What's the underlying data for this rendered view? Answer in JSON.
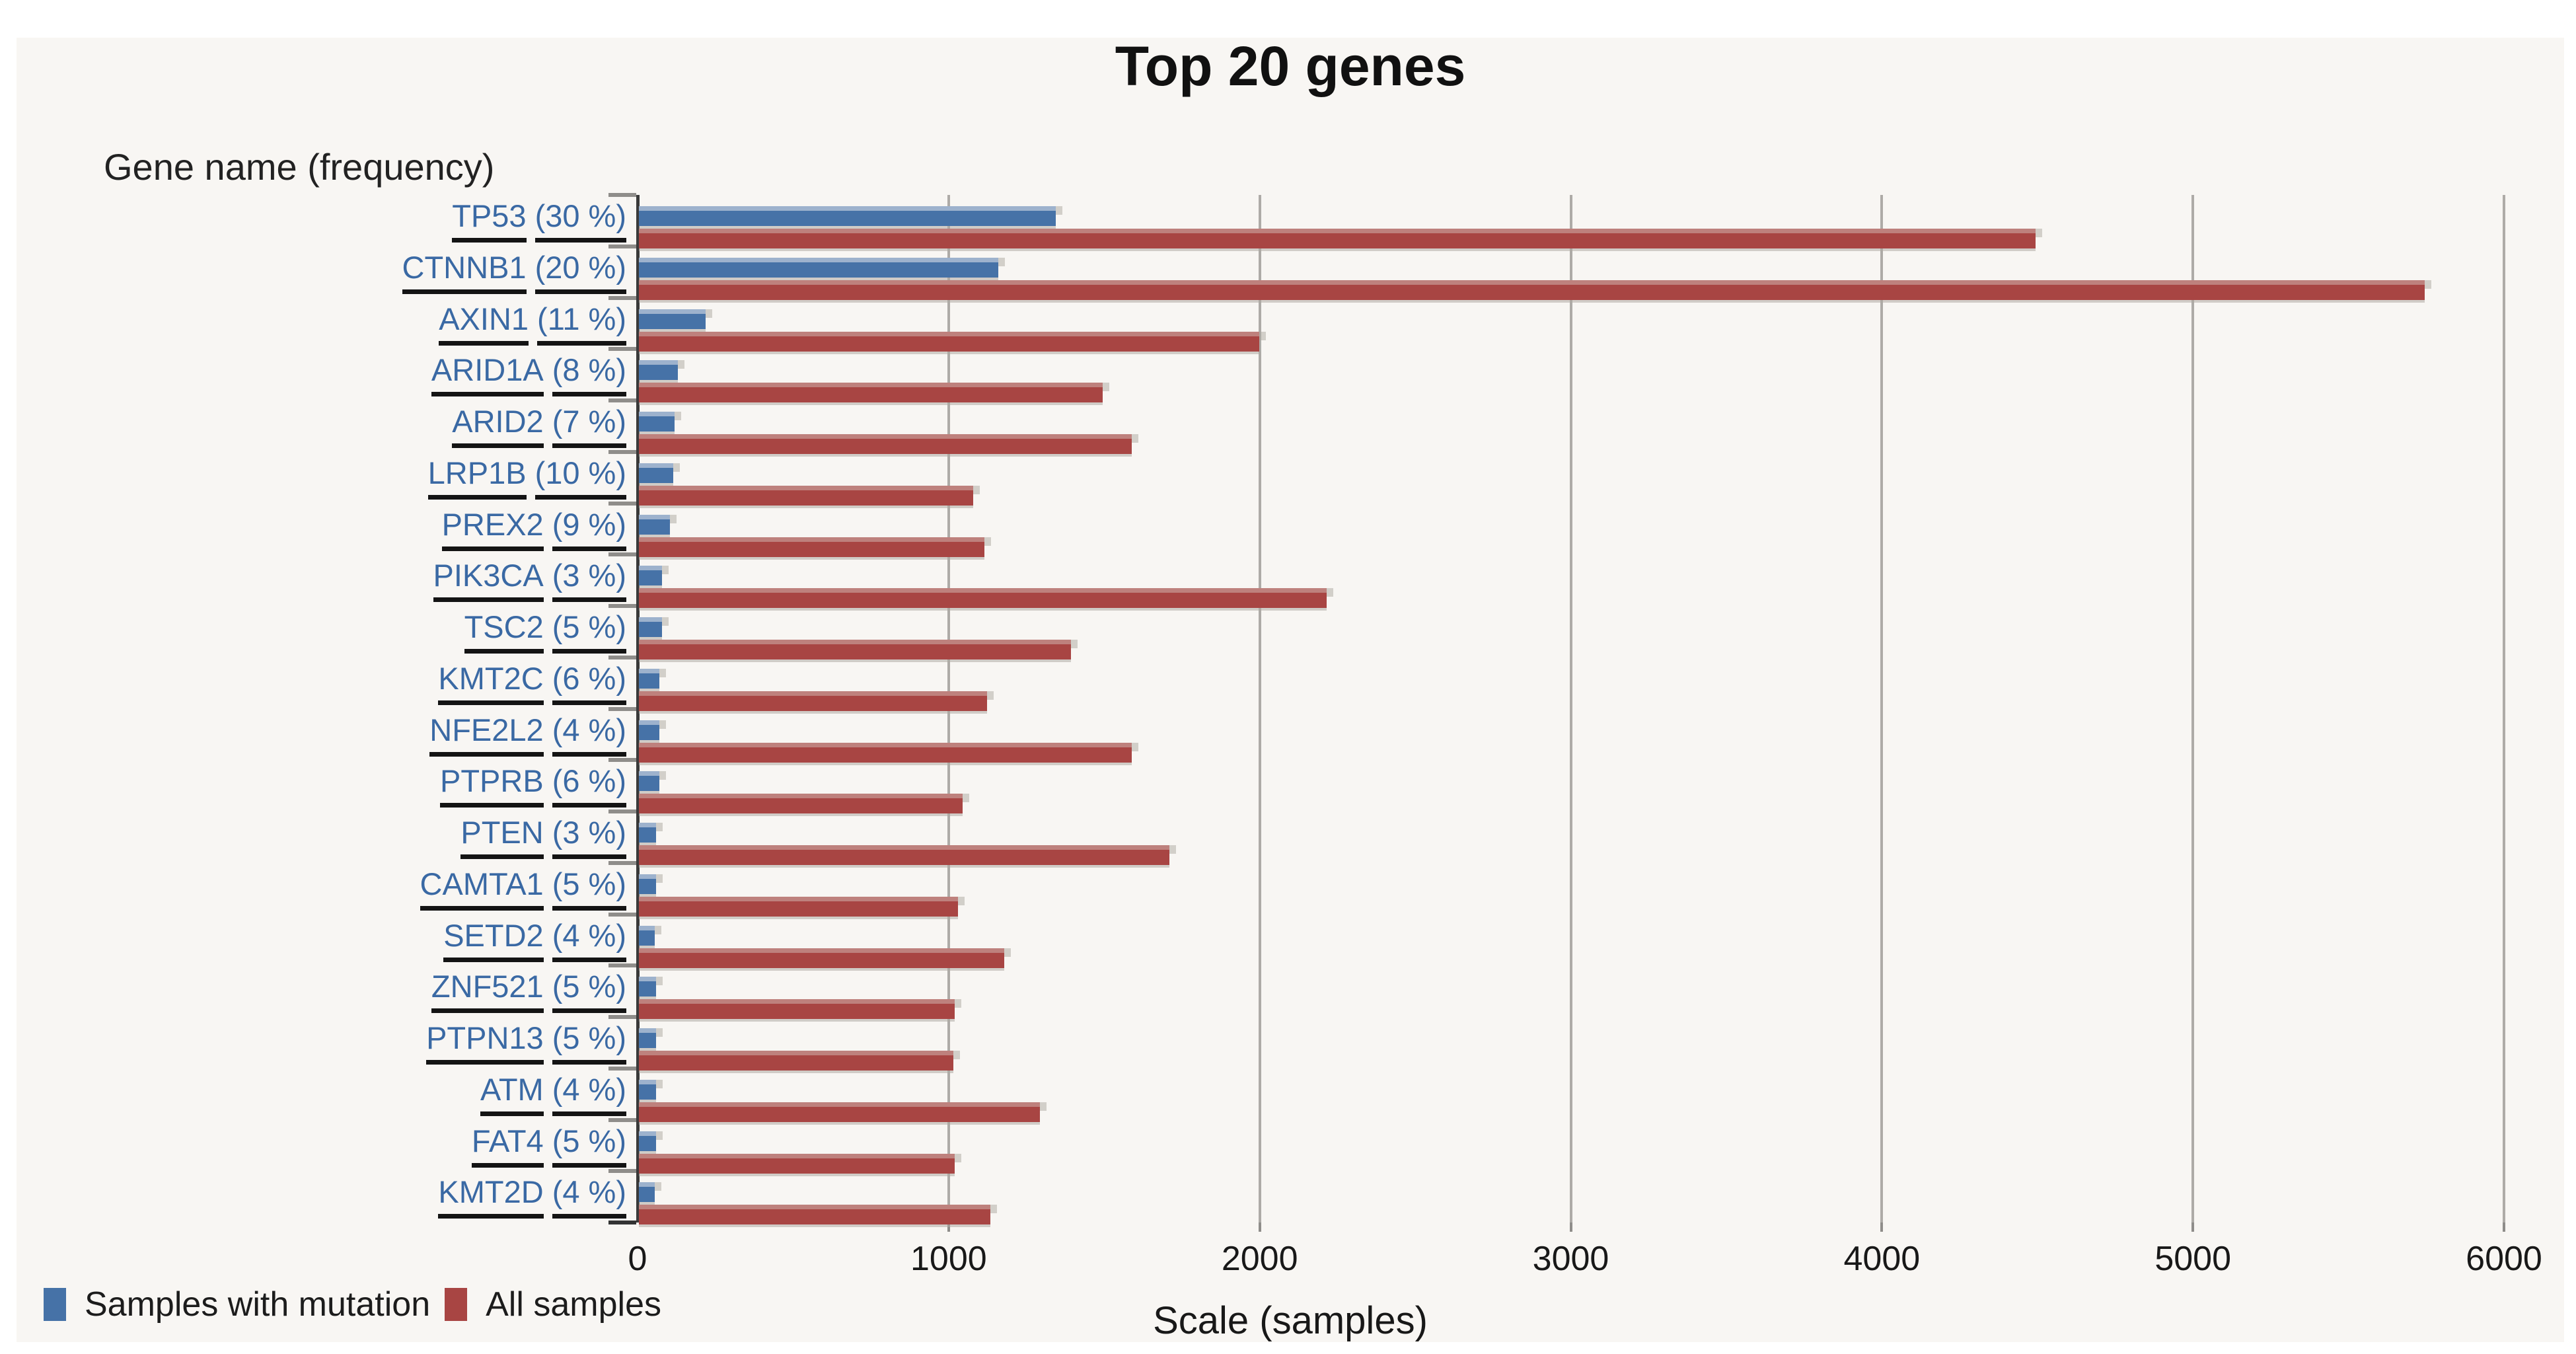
{
  "title": "Top 20 genes",
  "colors": {
    "panel_bg": "#F8F6F3",
    "mutation_bar": "#4672A7",
    "mutation_bevel": "#9DB2CD",
    "all_samples_bar": "#A84543",
    "all_samples_bevel": "#BE817D",
    "gene_link": "#3A69A4",
    "underline": "#141414",
    "axis": "#3A3A3A",
    "gridline": "#AEABA7"
  },
  "chart_data": {
    "type": "bar",
    "orientation": "horizontal",
    "title": "Top 20 genes",
    "xlabel": "Scale (samples)",
    "ylabel": "Gene name (frequency)",
    "xlim": [
      0,
      6000
    ],
    "x_ticks": [
      0,
      1000,
      2000,
      3000,
      4000,
      5000,
      6000
    ],
    "grid": true,
    "legend_position": "bottom-left",
    "categories": [
      {
        "gene": "TP53",
        "frequency": "(30 %)"
      },
      {
        "gene": "CTNNB1",
        "frequency": "(20 %)"
      },
      {
        "gene": "AXIN1",
        "frequency": "(11 %)"
      },
      {
        "gene": "ARID1A",
        "frequency": "(8 %)"
      },
      {
        "gene": "ARID2",
        "frequency": "(7 %)"
      },
      {
        "gene": "LRP1B",
        "frequency": "(10 %)"
      },
      {
        "gene": "PREX2",
        "frequency": "(9 %)"
      },
      {
        "gene": "PIK3CA",
        "frequency": "(3 %)"
      },
      {
        "gene": "TSC2",
        "frequency": "(5 %)"
      },
      {
        "gene": "KMT2C",
        "frequency": "(6 %)"
      },
      {
        "gene": "NFE2L2",
        "frequency": "(4 %)"
      },
      {
        "gene": "PTPRB",
        "frequency": "(6 %)"
      },
      {
        "gene": "PTEN",
        "frequency": "(3 %)"
      },
      {
        "gene": "CAMTA1",
        "frequency": "(5 %)"
      },
      {
        "gene": "SETD2",
        "frequency": "(4 %)"
      },
      {
        "gene": "ZNF521",
        "frequency": "(5 %)"
      },
      {
        "gene": "PTPN13",
        "frequency": "(5 %)"
      },
      {
        "gene": "ATM",
        "frequency": "(4 %)"
      },
      {
        "gene": "FAT4",
        "frequency": "(5 %)"
      },
      {
        "gene": "KMT2D",
        "frequency": "(4 %)"
      }
    ],
    "series": [
      {
        "name": "Samples with mutation",
        "color": "#4672A7",
        "values": [
          1340,
          1155,
          215,
          125,
          115,
          110,
          100,
          75,
          75,
          65,
          65,
          65,
          55,
          55,
          50,
          55,
          55,
          55,
          55,
          50
        ]
      },
      {
        "name": "All samples",
        "color": "#A84543",
        "values": [
          4490,
          5740,
          1995,
          1490,
          1585,
          1075,
          1110,
          2210,
          1390,
          1120,
          1585,
          1040,
          1705,
          1025,
          1175,
          1015,
          1010,
          1290,
          1015,
          1130
        ]
      }
    ]
  }
}
